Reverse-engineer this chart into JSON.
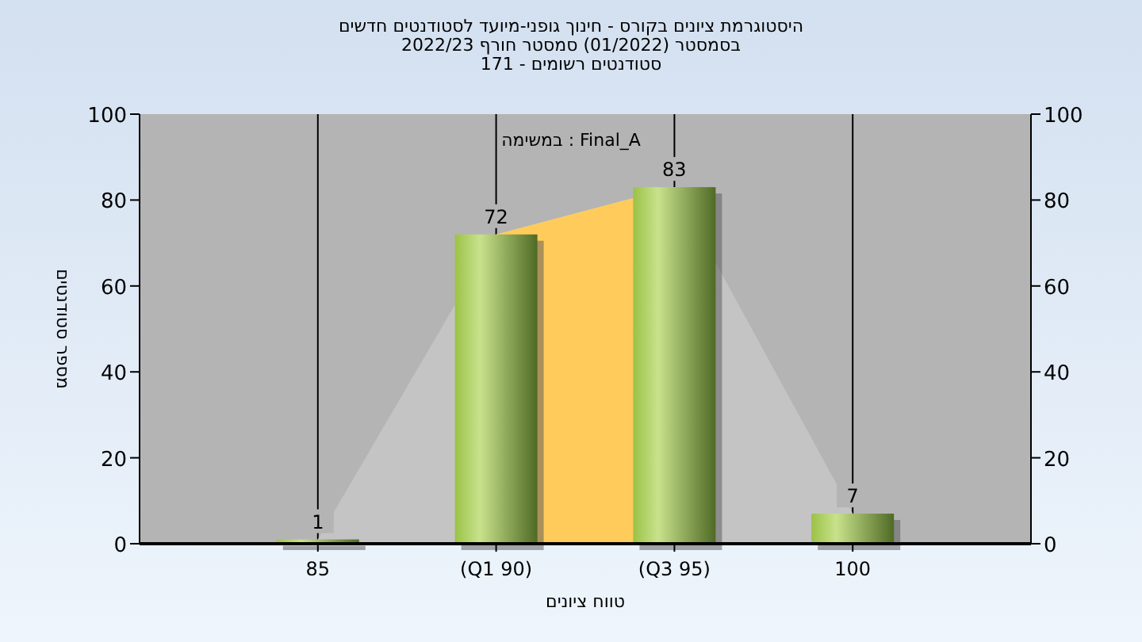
{
  "chart_data": {
    "type": "bar",
    "title": "היסטוגרמת ציונים בקורס - חינוך גופני-מיועד לסטודנטים חדשים",
    "subtitle": "בסמסטר  (01/2022)  סמסטר חורף 2022/23\nסטודנטים רשומים - 171",
    "xlabel": "טווח ציונים",
    "ylabel": "מספר סטודנטים",
    "annotations": [
      "במשימה : Final_A"
    ],
    "categories": [
      "85",
      "(Q1 90)",
      "(Q3 95)",
      "100"
    ],
    "series": [
      {
        "type": "area",
        "color": "#c4c4c4",
        "values": [
          1,
          72,
          83,
          7
        ]
      },
      {
        "type": "area",
        "color": "#ffcc5c",
        "values": [
          null,
          72,
          83,
          null
        ]
      },
      {
        "color": "#9bc247",
        "values": [
          1,
          72,
          83,
          7
        ],
        "value_labels": [
          "1",
          "72",
          "83",
          "7"
        ]
      }
    ],
    "ylim": [
      0,
      100
    ],
    "yticks": [
      0,
      20,
      40,
      60,
      80,
      100
    ],
    "y2lim": [
      0,
      100
    ],
    "y2ticks": [
      0,
      20,
      40,
      60,
      80,
      100
    ],
    "grid": "x"
  }
}
